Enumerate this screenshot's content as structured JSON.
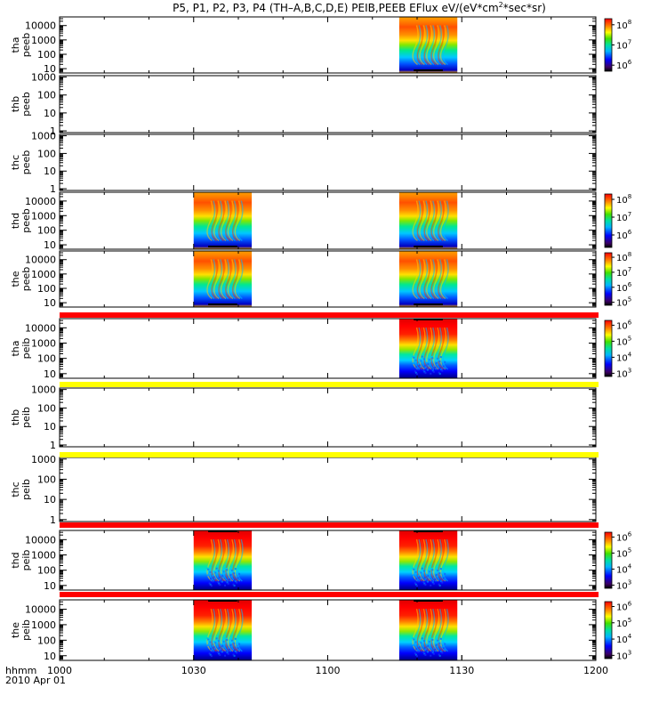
{
  "title": {
    "main": "P5, P1, P2, P3, P4 (TH–A,B,C,D,E) PEIB,PEEB EFlux eV/(eV*cm",
    "sup": "2",
    "tail": "*sec*sr)"
  },
  "footer": {
    "time_label": "hhmm",
    "date_label": "2010 Apr 01"
  },
  "colors": {
    "red_bar": "#ff0000",
    "yellow_bar": "#ffff00",
    "frame": "#000000"
  },
  "chart_data": {
    "type": "heatmap",
    "x_axis": {
      "range": [
        "1000",
        "1200"
      ],
      "tick_labels": [
        "1000",
        "1030",
        "1100",
        "1130",
        "1200"
      ]
    },
    "panels": [
      {
        "probe": "tha",
        "product": "peeb",
        "ylabel": "tha\npeeb",
        "y_ticks": [
          "10",
          "100",
          "1000",
          "10000"
        ],
        "y_range": [
          5,
          40000
        ],
        "colorbar": {
          "min_exp": 5.7,
          "max_exp": 8.3,
          "labels": [
            {
              "base": "10",
              "exp": "8"
            },
            {
              "base": "10",
              "exp": "7"
            },
            {
              "base": "10",
              "exp": "6"
            }
          ]
        },
        "coverage": [
          [
            "1116",
            "1129"
          ]
        ]
      },
      {
        "probe": "thb",
        "product": "peeb",
        "ylabel": "thb\npeeb",
        "y_ticks": [
          "1",
          "10",
          "100",
          "1000"
        ],
        "y_range": [
          0.8,
          1200
        ],
        "colorbar": null,
        "coverage": []
      },
      {
        "probe": "thc",
        "product": "peeb",
        "ylabel": "thc\npeeb",
        "y_ticks": [
          "1",
          "10",
          "100",
          "1000"
        ],
        "y_range": [
          0.8,
          1200
        ],
        "colorbar": null,
        "coverage": []
      },
      {
        "probe": "thd",
        "product": "peeb",
        "ylabel": "thd\npeeb",
        "y_ticks": [
          "10",
          "100",
          "1000",
          "10000"
        ],
        "y_range": [
          5,
          40000
        ],
        "colorbar": {
          "min_exp": 5.3,
          "max_exp": 8.3,
          "labels": [
            {
              "base": "10",
              "exp": "8"
            },
            {
              "base": "10",
              "exp": "7"
            },
            {
              "base": "10",
              "exp": "6"
            }
          ]
        },
        "coverage": [
          [
            "1030",
            "1043"
          ],
          [
            "1116",
            "1129"
          ]
        ]
      },
      {
        "probe": "the",
        "product": "peeb",
        "ylabel": "the\npeeb",
        "y_ticks": [
          "10",
          "100",
          "1000",
          "10000"
        ],
        "y_range": [
          5,
          40000
        ],
        "colorbar": {
          "min_exp": 4.8,
          "max_exp": 8.3,
          "labels": [
            {
              "base": "10",
              "exp": "8"
            },
            {
              "base": "10",
              "exp": "7"
            },
            {
              "base": "10",
              "exp": "6"
            },
            {
              "base": "10",
              "exp": "5"
            }
          ]
        },
        "coverage": [
          [
            "1030",
            "1043"
          ],
          [
            "1116",
            "1129"
          ]
        ]
      },
      {
        "probe": "tha",
        "product": "peib",
        "ylabel": "tha\npeib",
        "y_ticks": [
          "10",
          "100",
          "1000",
          "10000"
        ],
        "y_range": [
          5,
          40000
        ],
        "colorbar": {
          "min_exp": 2.8,
          "max_exp": 6.3,
          "labels": [
            {
              "base": "10",
              "exp": "6"
            },
            {
              "base": "10",
              "exp": "5"
            },
            {
              "base": "10",
              "exp": "4"
            },
            {
              "base": "10",
              "exp": "3"
            }
          ]
        },
        "coverage": [
          [
            "1116",
            "1129"
          ]
        ]
      },
      {
        "probe": "thb",
        "product": "peib",
        "ylabel": "thb\npeib",
        "y_ticks": [
          "1",
          "10",
          "100",
          "1000"
        ],
        "y_range": [
          0.8,
          1200
        ],
        "colorbar": null,
        "coverage": []
      },
      {
        "probe": "thc",
        "product": "peib",
        "ylabel": "thc\npeib",
        "y_ticks": [
          "1",
          "10",
          "100",
          "1000"
        ],
        "y_range": [
          0.8,
          1200
        ],
        "colorbar": null,
        "coverage": []
      },
      {
        "probe": "thd",
        "product": "peib",
        "ylabel": "thd\npeib",
        "y_ticks": [
          "10",
          "100",
          "1000",
          "10000"
        ],
        "y_range": [
          5,
          40000
        ],
        "colorbar": {
          "min_exp": 2.8,
          "max_exp": 6.3,
          "labels": [
            {
              "base": "10",
              "exp": "6"
            },
            {
              "base": "10",
              "exp": "5"
            },
            {
              "base": "10",
              "exp": "4"
            },
            {
              "base": "10",
              "exp": "3"
            }
          ]
        },
        "coverage": [
          [
            "1030",
            "1043"
          ],
          [
            "1116",
            "1129"
          ]
        ]
      },
      {
        "probe": "the",
        "product": "peib",
        "ylabel": "the\npeib",
        "y_ticks": [
          "10",
          "100",
          "1000",
          "10000"
        ],
        "y_range": [
          5,
          40000
        ],
        "colorbar": {
          "min_exp": 2.8,
          "max_exp": 6.3,
          "labels": [
            {
              "base": "10",
              "exp": "6"
            },
            {
              "base": "10",
              "exp": "5"
            },
            {
              "base": "10",
              "exp": "4"
            },
            {
              "base": "10",
              "exp": "3"
            }
          ]
        },
        "coverage": [
          [
            "1030",
            "1043"
          ],
          [
            "1116",
            "1129"
          ]
        ]
      }
    ],
    "status_bars": [
      {
        "after_panel": 4,
        "color": "red"
      },
      {
        "after_panel": 5,
        "color": "yellow"
      },
      {
        "after_panel": 6,
        "color": "yellow"
      },
      {
        "after_panel": 7,
        "color": "red"
      },
      {
        "after_panel": 8,
        "color": "red"
      }
    ]
  }
}
